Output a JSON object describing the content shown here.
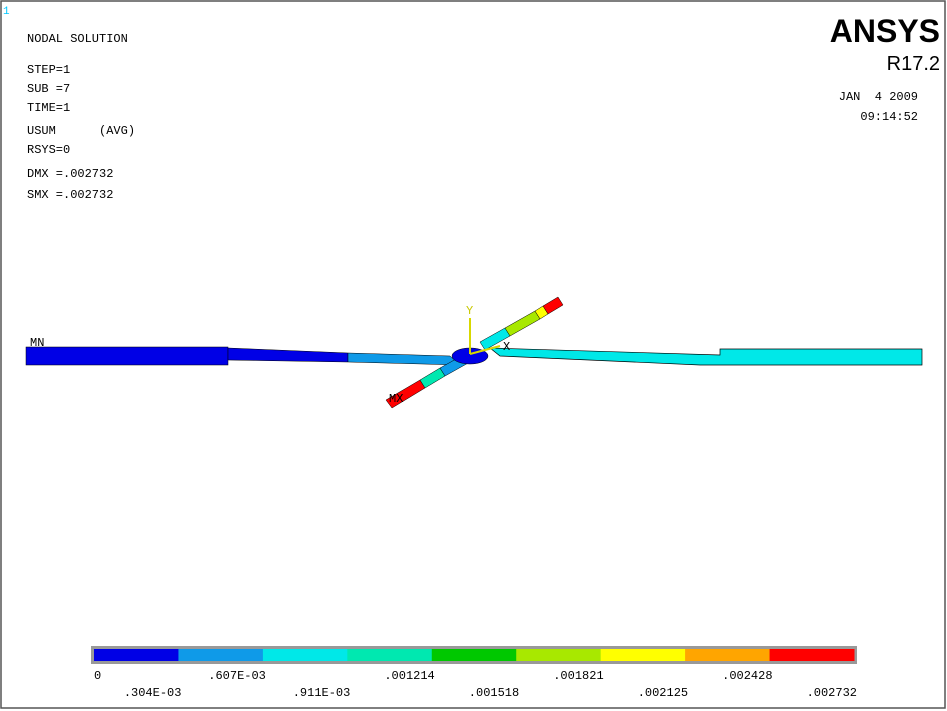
{
  "window": "1",
  "info": [
    "NODAL SOLUTION",
    "STEP=1",
    "SUB =7",
    "TIME=1",
    "USUM      (AVG)",
    "RSYS=0",
    "DMX =.002732",
    "SMX =.002732"
  ],
  "brand": {
    "name": "ANSYS",
    "release": "R17.2",
    "date": "JAN  4 2009",
    "time": "09:14:52"
  },
  "model": {
    "min_label": "MN",
    "max_label": "MX",
    "axis_y": "Y",
    "axis_x": "X"
  },
  "legend": {
    "colors": [
      "#0000e6",
      "#0f9ae8",
      "#00e8e8",
      "#00e8b0",
      "#00c800",
      "#a8e800",
      "#ffff00",
      "#ffa500",
      "#ff0000"
    ],
    "labels": [
      "0",
      ".304E-03",
      ".607E-03",
      ".911E-03",
      ".001214",
      ".001518",
      ".001821",
      ".002125",
      ".002428",
      ".002732"
    ]
  }
}
